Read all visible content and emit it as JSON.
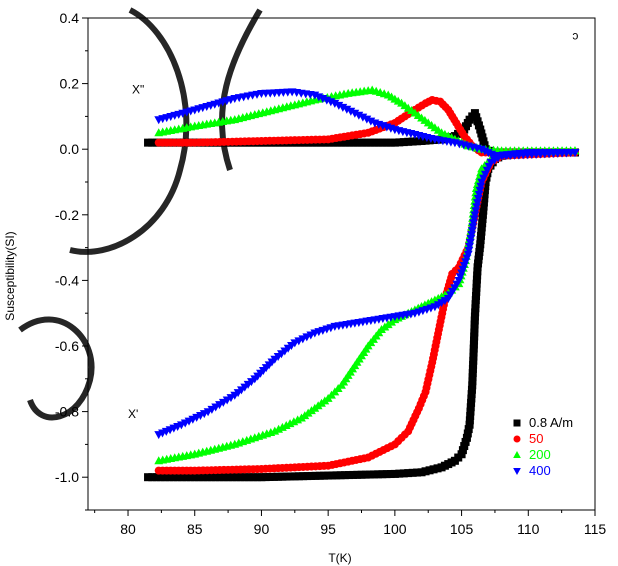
{
  "chart_data": {
    "type": "scatter",
    "xlabel": "T(K)",
    "ylabel": "Susceptibility(SI)",
    "xlim": [
      77,
      115
    ],
    "ylim": [
      -1.1,
      0.4
    ],
    "xticks": [
      80,
      85,
      90,
      95,
      100,
      105,
      110,
      115
    ],
    "yticks": [
      -1.0,
      -0.8,
      -0.6,
      -0.4,
      -0.2,
      0.0,
      0.2,
      0.4
    ],
    "ytick_labels": [
      "-1.0",
      "-0.8",
      "-0.6",
      "-0.4",
      "-0.2",
      "0.0",
      "0.2",
      "0.4"
    ],
    "grid": false,
    "legend_position": "bottom-right",
    "annotations": [
      {
        "text": "X\"",
        "x": 80.3,
        "y": 0.17
      },
      {
        "text": "X'",
        "x": 80.0,
        "y": -0.82
      },
      {
        "text": "ɔ",
        "x": 113.3,
        "y": 0.335
      }
    ],
    "series": [
      {
        "name": "0.8 A/m",
        "color": "#000000",
        "marker": "square",
        "chi2": [
          [
            81.5,
            0.02
          ],
          [
            84,
            0.02
          ],
          [
            88,
            0.02
          ],
          [
            92,
            0.02
          ],
          [
            96,
            0.02
          ],
          [
            100,
            0.02
          ],
          [
            102,
            0.025
          ],
          [
            103.5,
            0.03
          ],
          [
            104.5,
            0.04
          ],
          [
            105.2,
            0.06
          ],
          [
            105.6,
            0.09
          ],
          [
            106,
            0.11
          ],
          [
            106.4,
            0.06
          ],
          [
            106.8,
            0.0
          ],
          [
            107.3,
            -0.01
          ],
          [
            108,
            -0.01
          ],
          [
            110,
            -0.01
          ],
          [
            112,
            -0.01
          ],
          [
            113.5,
            -0.01
          ]
        ],
        "chi1": [
          [
            81.5,
            -1.0
          ],
          [
            85,
            -1.0
          ],
          [
            90,
            -1.0
          ],
          [
            95,
            -0.995
          ],
          [
            100,
            -0.99
          ],
          [
            102,
            -0.985
          ],
          [
            103.5,
            -0.97
          ],
          [
            104.5,
            -0.95
          ],
          [
            105,
            -0.93
          ],
          [
            105.4,
            -0.88
          ],
          [
            105.6,
            -0.84
          ],
          [
            105.8,
            -0.72
          ],
          [
            105.9,
            -0.62
          ],
          [
            106.0,
            -0.51
          ],
          [
            106.2,
            -0.36
          ],
          [
            106.4,
            -0.29
          ],
          [
            106.6,
            -0.2
          ],
          [
            106.8,
            -0.1
          ],
          [
            107,
            -0.06
          ],
          [
            107.5,
            -0.03
          ],
          [
            108,
            -0.02
          ],
          [
            110,
            -0.01
          ],
          [
            113.5,
            -0.01
          ]
        ]
      },
      {
        "name": "50",
        "color": "#ff0000",
        "marker": "circle",
        "chi2": [
          [
            82.3,
            0.02
          ],
          [
            85,
            0.02
          ],
          [
            90,
            0.025
          ],
          [
            95,
            0.03
          ],
          [
            98,
            0.05
          ],
          [
            100,
            0.08
          ],
          [
            101.5,
            0.12
          ],
          [
            102.3,
            0.14
          ],
          [
            102.8,
            0.15
          ],
          [
            103.4,
            0.145
          ],
          [
            104,
            0.12
          ],
          [
            104.6,
            0.08
          ],
          [
            105.2,
            0.04
          ],
          [
            105.8,
            0.01
          ],
          [
            106.5,
            -0.01
          ],
          [
            108,
            -0.01
          ],
          [
            113.5,
            -0.01
          ]
        ],
        "chi1": [
          [
            82.3,
            -0.98
          ],
          [
            85,
            -0.98
          ],
          [
            90,
            -0.975
          ],
          [
            95,
            -0.965
          ],
          [
            98,
            -0.94
          ],
          [
            100,
            -0.9
          ],
          [
            101,
            -0.86
          ],
          [
            101.8,
            -0.79
          ],
          [
            102.3,
            -0.74
          ],
          [
            102.8,
            -0.65
          ],
          [
            103.3,
            -0.55
          ],
          [
            103.8,
            -0.45
          ],
          [
            104.3,
            -0.38
          ],
          [
            104.8,
            -0.36
          ],
          [
            105.5,
            -0.3
          ],
          [
            106,
            -0.2
          ],
          [
            106.5,
            -0.1
          ],
          [
            107.2,
            -0.04
          ],
          [
            108,
            -0.02
          ],
          [
            113.5,
            -0.01
          ]
        ]
      },
      {
        "name": "200",
        "color": "#00ff00",
        "marker": "triangle-up",
        "chi2": [
          [
            82.3,
            0.05
          ],
          [
            85,
            0.07
          ],
          [
            88,
            0.09
          ],
          [
            91,
            0.12
          ],
          [
            94,
            0.15
          ],
          [
            96.5,
            0.17
          ],
          [
            98.3,
            0.18
          ],
          [
            99.5,
            0.165
          ],
          [
            100.5,
            0.14
          ],
          [
            101.5,
            0.11
          ],
          [
            102.5,
            0.08
          ],
          [
            103.5,
            0.05
          ],
          [
            104.5,
            0.03
          ],
          [
            105.5,
            0.01
          ],
          [
            106.5,
            0.0
          ],
          [
            108,
            -0.005
          ],
          [
            113.5,
            -0.005
          ]
        ],
        "chi1": [
          [
            82.3,
            -0.95
          ],
          [
            85,
            -0.93
          ],
          [
            88,
            -0.9
          ],
          [
            91,
            -0.86
          ],
          [
            93,
            -0.82
          ],
          [
            95,
            -0.76
          ],
          [
            96,
            -0.72
          ],
          [
            97,
            -0.66
          ],
          [
            98,
            -0.6
          ],
          [
            99,
            -0.55
          ],
          [
            100,
            -0.52
          ],
          [
            101,
            -0.5
          ],
          [
            102,
            -0.48
          ],
          [
            103,
            -0.46
          ],
          [
            104,
            -0.44
          ],
          [
            104.8,
            -0.41
          ],
          [
            105.3,
            -0.34
          ],
          [
            105.7,
            -0.25
          ],
          [
            106.1,
            -0.12
          ],
          [
            106.5,
            -0.06
          ],
          [
            107.2,
            -0.03
          ],
          [
            108,
            -0.01
          ],
          [
            113.5,
            -0.005
          ]
        ]
      },
      {
        "name": "400",
        "color": "#0000ff",
        "marker": "triangle-down",
        "chi2": [
          [
            82.3,
            0.09
          ],
          [
            85,
            0.12
          ],
          [
            88,
            0.155
          ],
          [
            90,
            0.17
          ],
          [
            92.3,
            0.175
          ],
          [
            94,
            0.165
          ],
          [
            95.5,
            0.14
          ],
          [
            97,
            0.11
          ],
          [
            98.5,
            0.08
          ],
          [
            100,
            0.06
          ],
          [
            101.5,
            0.045
          ],
          [
            103,
            0.03
          ],
          [
            104.5,
            0.02
          ],
          [
            105.5,
            0.01
          ],
          [
            106.5,
            0.0
          ],
          [
            107.5,
            -0.02
          ],
          [
            110,
            -0.01
          ],
          [
            113.5,
            -0.01
          ]
        ],
        "chi1": [
          [
            82.3,
            -0.87
          ],
          [
            84,
            -0.84
          ],
          [
            86,
            -0.8
          ],
          [
            88,
            -0.75
          ],
          [
            89.5,
            -0.7
          ],
          [
            91,
            -0.64
          ],
          [
            92.5,
            -0.59
          ],
          [
            94,
            -0.56
          ],
          [
            95.5,
            -0.54
          ],
          [
            97,
            -0.53
          ],
          [
            98.5,
            -0.52
          ],
          [
            100,
            -0.51
          ],
          [
            101.5,
            -0.5
          ],
          [
            103,
            -0.48
          ],
          [
            104,
            -0.455
          ],
          [
            104.8,
            -0.4
          ],
          [
            105.5,
            -0.32
          ],
          [
            106,
            -0.2
          ],
          [
            106.5,
            -0.1
          ],
          [
            107.2,
            -0.04
          ],
          [
            108,
            -0.02
          ],
          [
            113.5,
            -0.01
          ]
        ]
      }
    ]
  }
}
